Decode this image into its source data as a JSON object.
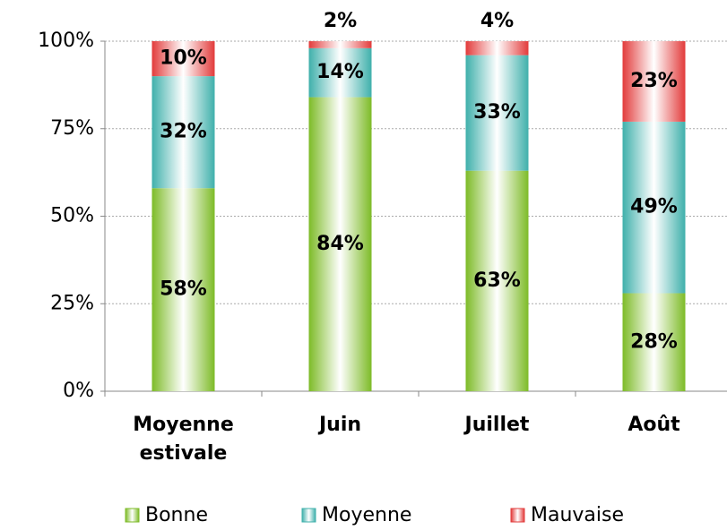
{
  "chart_data": {
    "type": "stacked_bar",
    "categories": [
      "Moyenne estivale",
      "Juin",
      "Juillet",
      "Août"
    ],
    "series": [
      {
        "name": "Bonne",
        "color": "#7dbb27",
        "values": [
          58,
          84,
          63,
          28
        ],
        "value_labels": [
          "58%",
          "84%",
          "63%",
          "28%"
        ]
      },
      {
        "name": "Moyenne",
        "color": "#3fb0ab",
        "values": [
          32,
          14,
          33,
          49
        ],
        "value_labels": [
          "32%",
          "14%",
          "33%",
          "49%"
        ]
      },
      {
        "name": "Mauvaise",
        "color": "#e23b3b",
        "values": [
          10,
          2,
          4,
          23
        ],
        "value_labels": [
          "10%",
          "2%",
          "4%",
          "23%"
        ]
      }
    ],
    "ylim": [
      0,
      100
    ],
    "yticks": [
      {
        "value": 0,
        "label": "0%"
      },
      {
        "value": 25,
        "label": "25%"
      },
      {
        "value": 50,
        "label": "50%"
      },
      {
        "value": 75,
        "label": "75%"
      },
      {
        "value": 100,
        "label": "100%"
      }
    ],
    "grid": true,
    "legend": "bottom"
  }
}
